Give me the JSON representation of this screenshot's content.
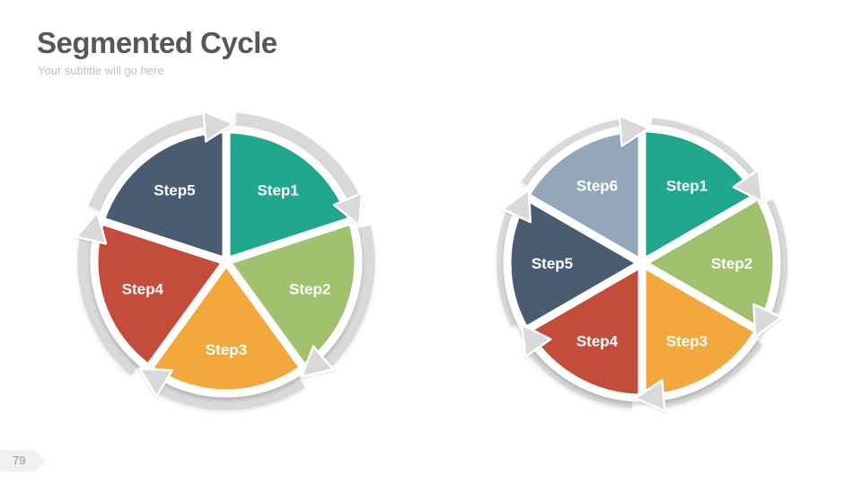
{
  "slide": {
    "title": "Segmented Cycle",
    "subtitle": "Your subtitle will go here",
    "page_number": "79"
  },
  "colors": {
    "background": "#FFFFFF",
    "ring": "#D9D9D9",
    "title_text": "#54575C",
    "subtitle_text": "#BDBFC1",
    "segment_label_text": "#FFFFFF",
    "badge_bg": "#F1F1F2",
    "badge_text": "#8F9193"
  },
  "diagrams": [
    {
      "name": "five-step-cycle",
      "steps": 5,
      "direction": "clockwise",
      "segments": [
        {
          "label": "Step1",
          "color": "#21A78E"
        },
        {
          "label": "Step2",
          "color": "#A0C16E"
        },
        {
          "label": "Step3",
          "color": "#F2A83C"
        },
        {
          "label": "Step4",
          "color": "#C44C3A"
        },
        {
          "label": "Step5",
          "color": "#4A5C72"
        }
      ]
    },
    {
      "name": "six-step-cycle",
      "steps": 6,
      "direction": "clockwise",
      "segments": [
        {
          "label": "Step1",
          "color": "#21A78E"
        },
        {
          "label": "Step2",
          "color": "#A0C16E"
        },
        {
          "label": "Step3",
          "color": "#F2A83C"
        },
        {
          "label": "Step4",
          "color": "#C44C3A"
        },
        {
          "label": "Step5",
          "color": "#4A5C72"
        },
        {
          "label": "Step6",
          "color": "#93A6BA"
        }
      ]
    }
  ]
}
